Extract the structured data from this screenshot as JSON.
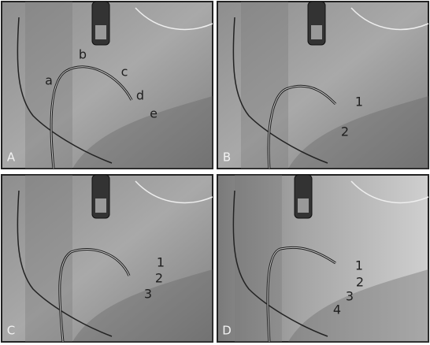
{
  "panels": [
    {
      "label": "A",
      "annotations": [
        "a",
        "b",
        "c",
        "d",
        "e"
      ]
    },
    {
      "label": "B",
      "annotations": [
        "1",
        "2"
      ]
    },
    {
      "label": "C",
      "annotations": [
        "1",
        "2",
        "3"
      ]
    },
    {
      "label": "D",
      "annotations": [
        "1",
        "2",
        "3",
        "4"
      ]
    }
  ]
}
